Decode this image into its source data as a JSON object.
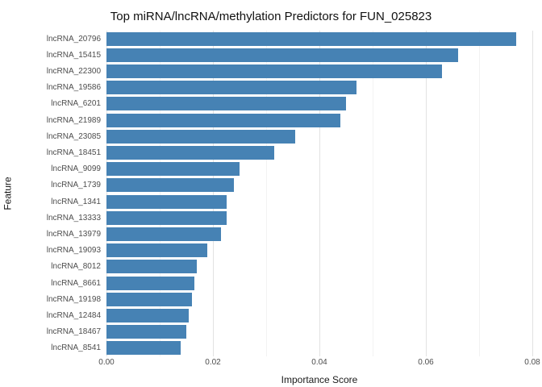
{
  "chart_data": {
    "type": "bar",
    "orientation": "horizontal",
    "title": "Top miRNA/lncRNA/methylation Predictors for FUN_025823",
    "xlabel": "Importance Score",
    "ylabel": "Feature",
    "xlim": [
      0,
      0.08
    ],
    "x_ticks": [
      0,
      0.02,
      0.04,
      0.06,
      0.08
    ],
    "x_tick_labels": [
      "0.00",
      "0.02",
      "0.04",
      "0.06",
      "0.08"
    ],
    "x_minor_ticks": [
      0.01,
      0.03,
      0.05,
      0.07
    ],
    "grid": true,
    "legend": "none",
    "bar_color": "#4682b4",
    "categories": [
      "lncRNA_20796",
      "lncRNA_15415",
      "lncRNA_22300",
      "lncRNA_19586",
      "lncRNA_6201",
      "lncRNA_21989",
      "lncRNA_23085",
      "lncRNA_18451",
      "lncRNA_9099",
      "lncRNA_1739",
      "lncRNA_1341",
      "lncRNA_13333",
      "lncRNA_13979",
      "lncRNA_19093",
      "lncRNA_8012",
      "lncRNA_8661",
      "lncRNA_19198",
      "lncRNA_12484",
      "lncRNA_18467",
      "lncRNA_8541"
    ],
    "values": [
      0.077,
      0.066,
      0.063,
      0.047,
      0.045,
      0.044,
      0.0355,
      0.0315,
      0.025,
      0.024,
      0.0225,
      0.0225,
      0.0215,
      0.019,
      0.017,
      0.0165,
      0.016,
      0.0155,
      0.015,
      0.014
    ]
  }
}
